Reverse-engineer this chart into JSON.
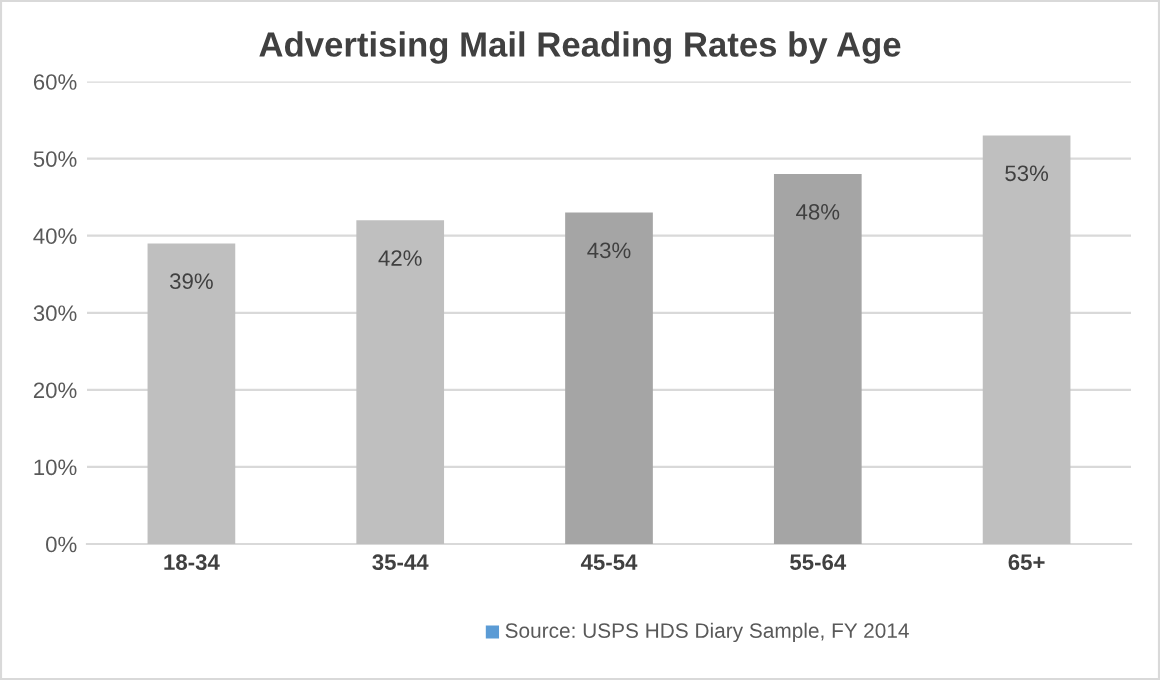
{
  "chart_data": {
    "type": "bar",
    "title": "Advertising Mail Reading Rates by Age",
    "categories": [
      "18-34",
      "35-44",
      "45-54",
      "55-64",
      "65+"
    ],
    "values": [
      39,
      42,
      43,
      48,
      53
    ],
    "colors": [
      "#bfbfbf",
      "#bfbfbf",
      "#a5a5a5",
      "#a5a5a5",
      "#bfbfbf"
    ],
    "value_labels": [
      "39%",
      "42%",
      "43%",
      "48%",
      "53%"
    ],
    "ylim": [
      0,
      60
    ],
    "yticks": [
      {
        "value": 0,
        "label": "0%"
      },
      {
        "value": 10,
        "label": "10%"
      },
      {
        "value": 20,
        "label": "20%"
      },
      {
        "value": 30,
        "label": "30%"
      },
      {
        "value": 40,
        "label": "40%"
      },
      {
        "value": 50,
        "label": "50%"
      },
      {
        "value": 60,
        "label": "60%"
      }
    ],
    "grid": "y",
    "annotations": [
      "Source: USPS HDS Diary Sample, FY 2014"
    ]
  }
}
